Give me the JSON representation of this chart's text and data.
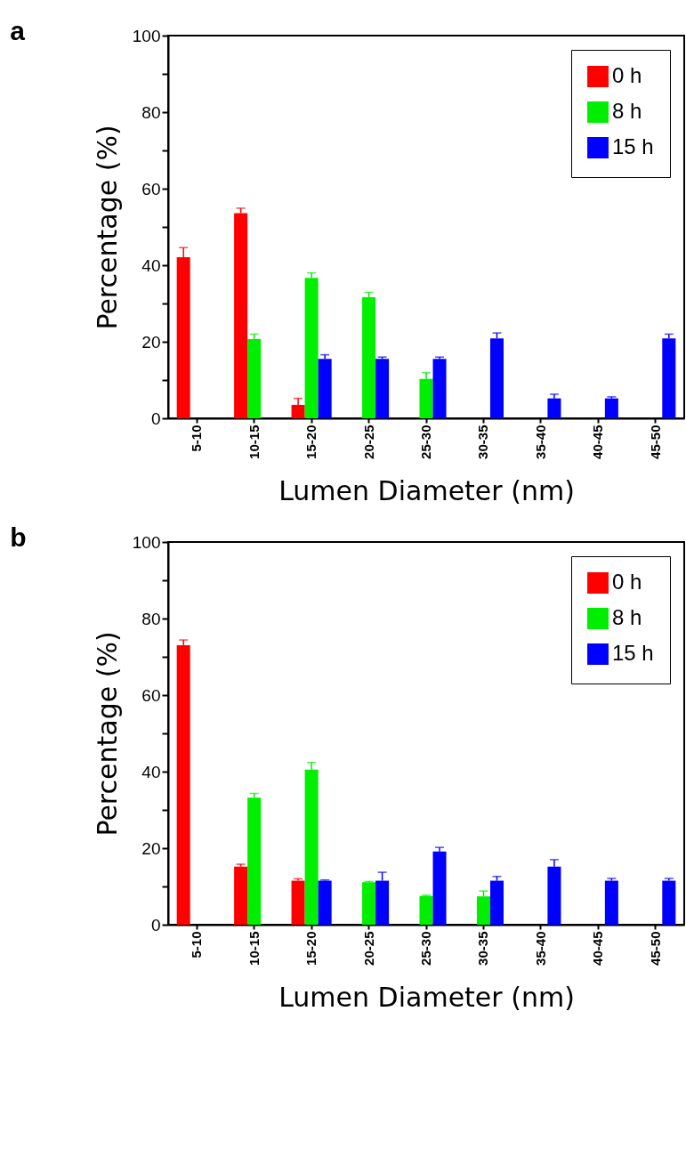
{
  "chart_data": [
    {
      "type": "bar",
      "title": "a",
      "xlabel": "Lumen Diameter (nm)",
      "ylabel": "Percentage (%)",
      "categories": [
        "5-10",
        "10-15",
        "15-20",
        "20-25",
        "25-30",
        "30-35",
        "35-40",
        "40-45",
        "45-50"
      ],
      "series": [
        {
          "name": "0 h",
          "color": "#ff0000",
          "values": [
            42.1,
            53.6,
            3.5,
            null,
            null,
            null,
            null,
            null,
            null
          ],
          "errors": [
            [
              42.1,
              44.6
            ],
            [
              53.6,
              54.9
            ],
            [
              3.5,
              5.2
            ],
            null,
            null,
            null,
            null,
            null,
            null
          ]
        },
        {
          "name": "8 h",
          "color": "#00ee00",
          "values": [
            null,
            20.7,
            36.7,
            31.6,
            10.3,
            null,
            null,
            null,
            null
          ],
          "errors": [
            null,
            [
              20.7,
              22.0
            ],
            [
              36.7,
              38.0
            ],
            [
              31.6,
              32.9
            ],
            [
              10.3,
              11.9
            ],
            null,
            null,
            null,
            null
          ]
        },
        {
          "name": "15 h",
          "color": "#0000ff",
          "values": [
            null,
            null,
            15.5,
            15.5,
            15.5,
            20.9,
            5.2,
            5.2,
            20.9
          ],
          "errors": [
            null,
            null,
            [
              15.5,
              16.6
            ],
            [
              15.5,
              16.0
            ],
            [
              15.5,
              16.0
            ],
            [
              20.9,
              22.3
            ],
            [
              5.2,
              6.3
            ],
            [
              5.2,
              5.6
            ],
            [
              20.9,
              22.0
            ]
          ]
        }
      ],
      "ylim": [
        0,
        100
      ],
      "yticks": [
        0,
        {
          "value": 10,
          "label": null
        },
        20,
        {
          "value": 30,
          "label": null
        },
        40,
        {
          "value": 50,
          "label": null
        },
        60,
        {
          "value": 70,
          "label": null
        },
        80,
        {
          "value": 90,
          "label": null
        },
        100
      ],
      "grid": false,
      "legend": "top right"
    },
    {
      "type": "bar",
      "title": "b",
      "xlabel": "Lumen Diameter (nm)",
      "ylabel": "Percentage (%)",
      "categories": [
        "5-10",
        "10-15",
        "15-20",
        "20-25",
        "25-30",
        "30-35",
        "35-40",
        "40-45",
        "45-50"
      ],
      "series": [
        {
          "name": "0 h",
          "color": "#ff0000",
          "values": [
            73.0,
            15.2,
            11.5,
            null,
            null,
            null,
            null,
            null,
            null
          ],
          "errors": [
            [
              73.0,
              74.4
            ],
            [
              15.2,
              15.8
            ],
            [
              11.5,
              12.0
            ],
            null,
            null,
            null,
            null,
            null,
            null
          ]
        },
        {
          "name": "8 h",
          "color": "#00ee00",
          "values": [
            null,
            33.2,
            40.5,
            11.1,
            7.5,
            7.4,
            null,
            null,
            null
          ],
          "errors": [
            null,
            [
              33.2,
              34.3
            ],
            [
              40.5,
              42.4
            ],
            [
              11.1,
              11.3
            ],
            [
              7.5,
              7.7
            ],
            [
              7.4,
              8.8
            ],
            null,
            null,
            null
          ]
        },
        {
          "name": "15 h",
          "color": "#0000ff",
          "values": [
            null,
            null,
            11.5,
            11.5,
            19.1,
            11.5,
            15.2,
            11.5,
            11.5
          ],
          "errors": [
            null,
            null,
            [
              11.5,
              11.7
            ],
            [
              11.5,
              13.7
            ],
            [
              19.1,
              20.2
            ],
            [
              11.5,
              12.6
            ],
            [
              15.2,
              17.0
            ],
            [
              11.5,
              12.1
            ],
            [
              11.5,
              12.1
            ]
          ]
        }
      ],
      "ylim": [
        0,
        100
      ],
      "yticks": [
        0,
        {
          "value": 10,
          "label": null
        },
        20,
        {
          "value": 30,
          "label": null
        },
        40,
        {
          "value": 50,
          "label": null
        },
        60,
        {
          "value": 70,
          "label": null
        },
        80,
        {
          "value": 90,
          "label": null
        },
        100
      ],
      "grid": false,
      "legend": "top right"
    }
  ]
}
